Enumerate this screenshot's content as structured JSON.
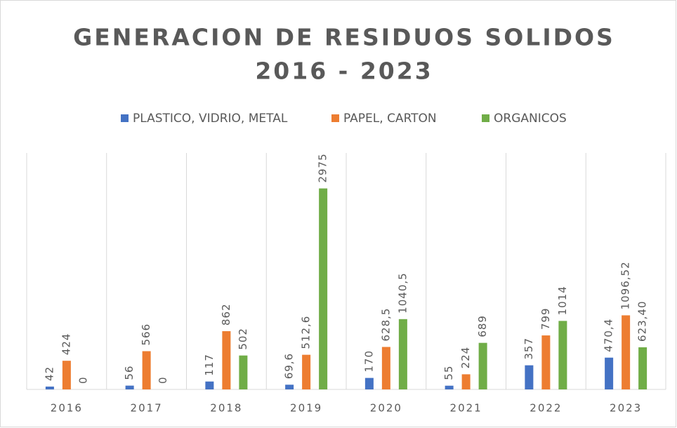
{
  "chart_data": {
    "type": "bar",
    "title": [
      "GENERACION DE RESIDUOS SOLIDOS",
      "2016 - 2023"
    ],
    "categories": [
      "2016",
      "2017",
      "2018",
      "2019",
      "2020",
      "2021",
      "2022",
      "2023"
    ],
    "series": [
      {
        "name": "PLASTICO, VIDRIO, METAL",
        "color": "#4472c4",
        "values": [
          42,
          56,
          117,
          69.6,
          170,
          55,
          357,
          470.4
        ],
        "value_labels": [
          "42",
          "56",
          "117",
          "69,6",
          "170",
          "55",
          "357",
          "470,4"
        ]
      },
      {
        "name": "PAPEL, CARTON",
        "color": "#ed7d31",
        "values": [
          424,
          566,
          862,
          512.6,
          628.5,
          224,
          799,
          1096.52
        ],
        "value_labels": [
          "424",
          "566",
          "862",
          "512,6",
          "628,5",
          "224",
          "799",
          "1096,52"
        ]
      },
      {
        "name": "ORGANICOS",
        "color": "#70ad47",
        "values": [
          0,
          0,
          502,
          2975,
          1040.5,
          689,
          1014,
          623.4
        ],
        "value_labels": [
          "0",
          "0",
          "502",
          "2975",
          "1040,5",
          "689",
          "1014",
          "623,40"
        ]
      }
    ],
    "ylim": [
      0,
      3500
    ],
    "legend": "top"
  }
}
